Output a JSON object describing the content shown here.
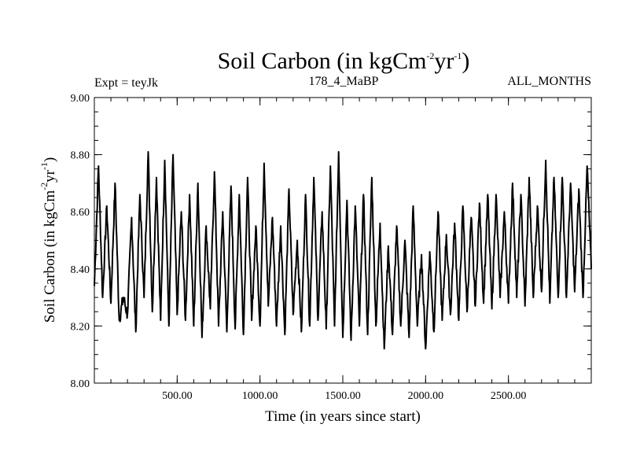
{
  "chart_data": {
    "type": "line",
    "title": {
      "main": "Soil Carbon (in kgCm",
      "sup1": "-2",
      "mid": "yr",
      "sup2": "-1",
      "end": ")"
    },
    "left_label": "Expt = teyJk",
    "center_label": "178_4_MaBP",
    "right_label": "ALL_MONTHS",
    "xlabel": "Time (in years since start)",
    "ylabel": {
      "main": "Soil Carbon (in kgCm",
      "sup1": "-2",
      "mid": "yr",
      "sup2": "-1",
      "end": ")"
    },
    "xlim": [
      0,
      3000
    ],
    "ylim": [
      8.0,
      9.0
    ],
    "xticks": [
      {
        "value": 500,
        "label": "500.00"
      },
      {
        "value": 1000,
        "label": "1000.00"
      },
      {
        "value": 1500,
        "label": "1500.00"
      },
      {
        "value": 2000,
        "label": "2000.00"
      },
      {
        "value": 2500,
        "label": "2500.00"
      }
    ],
    "yticks": [
      {
        "value": 8.0,
        "label": "8.00"
      },
      {
        "value": 8.2,
        "label": "8.20"
      },
      {
        "value": 8.4,
        "label": "8.40"
      },
      {
        "value": 8.6,
        "label": "8.60"
      },
      {
        "value": 8.8,
        "label": "8.80"
      },
      {
        "value": 9.0,
        "label": "9.00"
      }
    ],
    "series": [
      {
        "color": "#000000",
        "x": [
          0,
          25,
          50,
          75,
          100,
          125,
          150,
          175,
          200,
          225,
          250,
          275,
          300,
          325,
          350,
          375,
          400,
          425,
          450,
          475,
          500,
          525,
          550,
          575,
          600,
          625,
          650,
          675,
          700,
          725,
          750,
          775,
          800,
          825,
          850,
          875,
          900,
          925,
          950,
          975,
          1000,
          1025,
          1050,
          1075,
          1100,
          1125,
          1150,
          1175,
          1200,
          1225,
          1250,
          1275,
          1300,
          1325,
          1350,
          1375,
          1400,
          1425,
          1450,
          1475,
          1500,
          1525,
          1550,
          1575,
          1600,
          1625,
          1650,
          1675,
          1700,
          1725,
          1750,
          1775,
          1800,
          1825,
          1850,
          1875,
          1900,
          1925,
          1950,
          1975,
          2000,
          2025,
          2050,
          2075,
          2100,
          2125,
          2150,
          2175,
          2200,
          2225,
          2250,
          2275,
          2300,
          2325,
          2350,
          2375,
          2400,
          2425,
          2450,
          2475,
          2500,
          2525,
          2550,
          2575,
          2600,
          2625,
          2650,
          2675,
          2700,
          2725,
          2750,
          2775,
          2800,
          2825,
          2850,
          2875,
          2900,
          2925,
          2950,
          2975,
          3000
        ],
        "y": [
          8.34,
          8.76,
          8.3,
          8.62,
          8.28,
          8.7,
          8.22,
          8.3,
          8.24,
          8.58,
          8.18,
          8.66,
          8.3,
          8.81,
          8.25,
          8.72,
          8.22,
          8.78,
          8.2,
          8.8,
          8.24,
          8.6,
          8.22,
          8.66,
          8.2,
          8.7,
          8.16,
          8.55,
          8.26,
          8.74,
          8.2,
          8.6,
          8.18,
          8.69,
          8.19,
          8.66,
          8.17,
          8.72,
          8.22,
          8.55,
          8.2,
          8.77,
          8.27,
          8.58,
          8.2,
          8.55,
          8.17,
          8.68,
          8.24,
          8.5,
          8.18,
          8.66,
          8.2,
          8.72,
          8.22,
          8.6,
          8.19,
          8.76,
          8.2,
          8.81,
          8.16,
          8.64,
          8.15,
          8.62,
          8.2,
          8.66,
          8.17,
          8.72,
          8.2,
          8.56,
          8.12,
          8.48,
          8.17,
          8.55,
          8.2,
          8.5,
          8.16,
          8.62,
          8.2,
          8.45,
          8.12,
          8.46,
          8.18,
          8.6,
          8.22,
          8.52,
          8.24,
          8.56,
          8.22,
          8.62,
          8.25,
          8.58,
          8.27,
          8.63,
          8.28,
          8.66,
          8.26,
          8.66,
          8.3,
          8.6,
          8.28,
          8.7,
          8.3,
          8.66,
          8.27,
          8.72,
          8.3,
          8.62,
          8.32,
          8.78,
          8.28,
          8.72,
          8.3,
          8.72,
          8.3,
          8.7,
          8.32,
          8.68,
          8.3,
          8.76,
          8.4
        ]
      }
    ]
  }
}
